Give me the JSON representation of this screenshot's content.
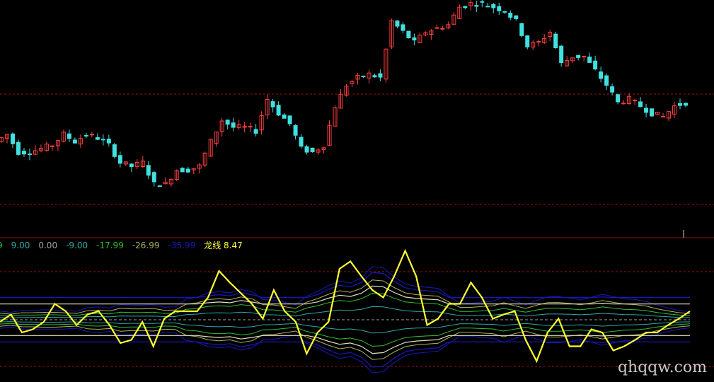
{
  "chart_data": [
    {
      "type": "candlestick",
      "title": "",
      "closes": [
        140,
        150,
        125,
        125,
        130,
        135,
        150,
        140,
        150,
        145,
        135,
        110,
        105,
        110,
        80,
        80,
        100,
        100,
        105,
        140,
        170,
        160,
        160,
        155,
        200,
        180,
        165,
        130,
        125,
        135,
        190,
        220,
        230,
        235,
        230,
        310,
        295,
        280,
        295,
        300,
        305,
        330,
        335,
        335,
        330,
        325,
        310,
        275,
        280,
        295,
        250,
        260,
        260,
        240,
        220,
        195,
        200,
        190,
        180,
        175,
        190,
        195
      ],
      "reference_lines": "dashed-red",
      "colors": {
        "up": "#ff4040",
        "down": "#40e0e0",
        "ref": "#a01010"
      }
    },
    {
      "type": "line",
      "title": "",
      "legend": [
        {
          "text": "9",
          "color": "#30c030"
        },
        {
          "text": "9.00",
          "color": "#30a8a8"
        },
        {
          "text": "0.00",
          "color": "#a0a0a0"
        },
        {
          "text": "-9.00",
          "color": "#30a8a8"
        },
        {
          "text": "-17.99",
          "color": "#30c030"
        },
        {
          "text": "-26.99",
          "color": "#b0b060"
        },
        {
          "text": "-35.99",
          "color": "#1818c0"
        },
        {
          "text": "龙线 8.47",
          "color": "#ffff40"
        }
      ],
      "series": [
        {
          "name": "龙线",
          "color": "#ffff30",
          "values": [
            -2,
            5,
            -12,
            -9,
            -2,
            15,
            8,
            -5,
            5,
            8,
            -5,
            -22,
            -19,
            -2,
            -25,
            1,
            8,
            8,
            8,
            21,
            46,
            35,
            25,
            15,
            1,
            28,
            8,
            -2,
            -32,
            -12,
            -2,
            48,
            55,
            41,
            28,
            21,
            41,
            65,
            41,
            -5,
            1,
            15,
            15,
            35,
            21,
            1,
            5,
            8,
            -19,
            -39,
            -12,
            1,
            -25,
            -25,
            -9,
            -12,
            -29,
            -25,
            -19,
            -12,
            -12,
            -5,
            1,
            8
          ]
        }
      ],
      "levels": [
        9,
        0,
        -9,
        -17.99,
        -26.99,
        -35.99
      ],
      "watermark": "qhqqw.com"
    }
  ]
}
